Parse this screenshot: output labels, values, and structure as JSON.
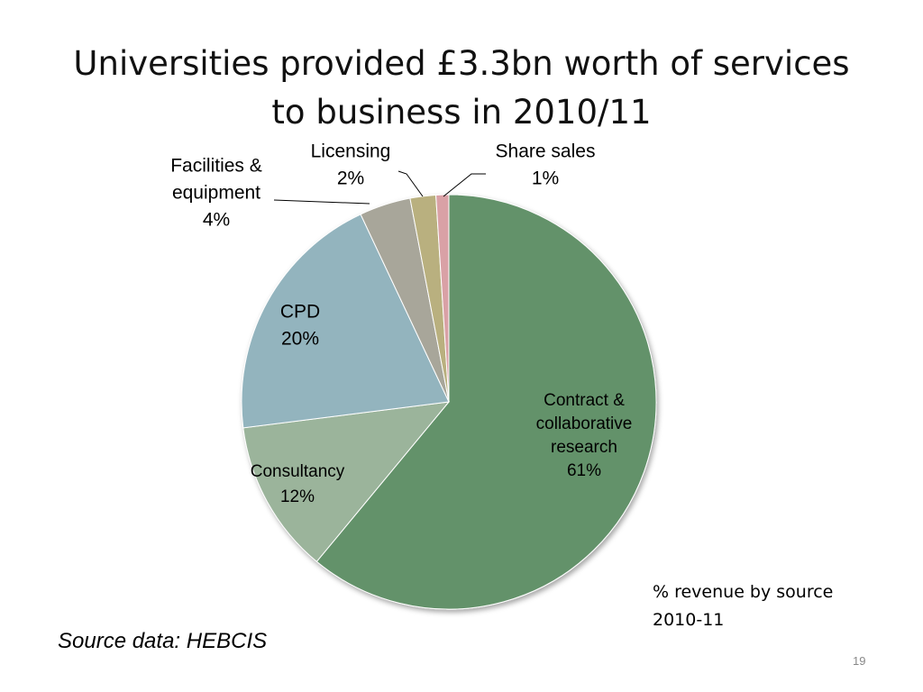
{
  "slide": {
    "title_line1": "Universities provided £3.3bn worth of services",
    "title_line2": "to business in 2010/11",
    "note_line1": "% revenue by source",
    "note_line2": "2010-11",
    "source": "Source data: HEBCIS",
    "page_number": "19"
  },
  "chart_data": {
    "type": "pie",
    "title": "",
    "start_angle": "12 o'clock",
    "direction": "clockwise",
    "slices": [
      {
        "label": [
          "Contract &",
          "collaborative",
          "research"
        ],
        "value": 61,
        "value_label": "61%",
        "color": "#64926b"
      },
      {
        "label": [
          "Consultancy"
        ],
        "value": 12,
        "value_label": "12%",
        "color": "#9bb49b"
      },
      {
        "label": [
          "CPD"
        ],
        "value": 20,
        "value_label": "20%",
        "color": "#93b4be"
      },
      {
        "label": [
          "Facilities &",
          "equipment"
        ],
        "value": 4,
        "value_label": "4%",
        "color": "#a8a69a"
      },
      {
        "label": [
          "Licensing"
        ],
        "value": 2,
        "value_label": "2%",
        "color": "#b9b07f"
      },
      {
        "label": [
          "Share sales"
        ],
        "value": 1,
        "value_label": "1%",
        "color": "#d9a1a6"
      }
    ]
  }
}
